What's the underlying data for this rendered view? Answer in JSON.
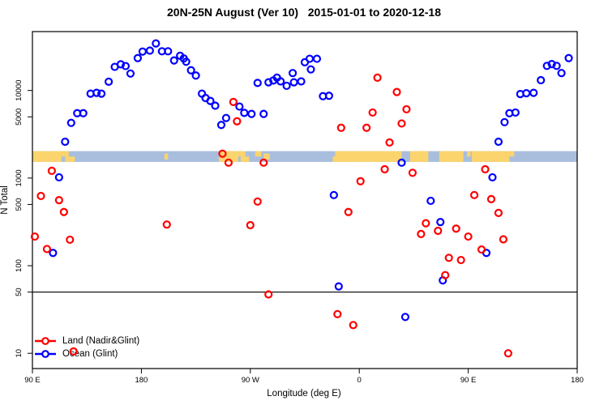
{
  "title": "20N-25N August (Ver 10)   2015-01-01 to 2020-12-18",
  "axes": {
    "x": {
      "label": "Longitude (deg E)",
      "range": [
        0,
        450
      ],
      "note": "x positions are degrees eastward from 90E; axis wraps past 180, 0 and 90E again",
      "ticks": [
        {
          "pos": 0,
          "label": "90 E"
        },
        {
          "pos": 90,
          "label": "180"
        },
        {
          "pos": 180,
          "label": "90 W"
        },
        {
          "pos": 270,
          "label": "0"
        },
        {
          "pos": 360,
          "label": "90 E"
        },
        {
          "pos": 450,
          "label": "180"
        }
      ]
    },
    "y": {
      "label": "N Total",
      "scale": "log",
      "range": [
        6.7,
        47000
      ],
      "ticks": [
        10,
        50,
        100,
        500,
        1000,
        5000,
        10000
      ]
    }
  },
  "reference_line": {
    "y": 50,
    "color": "#000000"
  },
  "land_ocean_band": {
    "ocean_color": "#a9bedd",
    "land_color": "#fbd46d",
    "n_range": [
      1530,
      2030
    ],
    "segments": [
      {
        "d0": 0,
        "d1": 24,
        "row": "full"
      },
      {
        "d0": 24,
        "d1": 30,
        "row": "top"
      },
      {
        "d0": 27,
        "d1": 35,
        "row": "bottom"
      },
      {
        "d0": 109,
        "d1": 112,
        "row": "mid"
      },
      {
        "d0": 154,
        "d1": 170,
        "row": "full"
      },
      {
        "d0": 170,
        "d1": 176,
        "row": "top"
      },
      {
        "d0": 172,
        "d1": 179,
        "row": "bottom"
      },
      {
        "d0": 184,
        "d1": 189,
        "row": "top"
      },
      {
        "d0": 191,
        "d1": 196,
        "row": "mid"
      },
      {
        "d0": 248,
        "d1": 252,
        "row": "bottom"
      },
      {
        "d0": 250,
        "d1": 305,
        "row": "full"
      },
      {
        "d0": 312,
        "d1": 327,
        "row": "full"
      },
      {
        "d0": 336,
        "d1": 356,
        "row": "full"
      },
      {
        "d0": 359,
        "d1": 362,
        "row": "top"
      },
      {
        "d0": 363,
        "d1": 391,
        "row": "full"
      },
      {
        "d0": 391,
        "d1": 398,
        "row": "top"
      },
      {
        "d0": 389,
        "d1": 394,
        "row": "bottom"
      }
    ]
  },
  "legend": {
    "items": [
      {
        "label": "Land (Nadir&Glint)",
        "color": "#ff0000"
      },
      {
        "label": "Ocean (Glint)",
        "color": "#0000ff"
      }
    ]
  },
  "chart_data": {
    "type": "scatter",
    "title": "20N-25N August (Ver 10)   2015-01-01 to 2020-12-18",
    "xlabel": "Longitude (deg E)",
    "ylabel": "N Total",
    "ylog": true,
    "ylim": [
      6.7,
      47000
    ],
    "x_unit": "degrees eastward from 90E (0..450)",
    "marker": {
      "shape": "open-circle",
      "radius": 4,
      "stroke_width": 2.2
    },
    "series": [
      {
        "name": "Ocean (Glint)",
        "color": "#0000ff",
        "points": [
          [
            17,
            140
          ],
          [
            22,
            1020
          ],
          [
            27,
            2600
          ],
          [
            32,
            4270
          ],
          [
            37,
            5500
          ],
          [
            42,
            5500
          ],
          [
            48,
            9200
          ],
          [
            53,
            9400
          ],
          [
            57,
            9200
          ],
          [
            63,
            12600
          ],
          [
            68,
            18600
          ],
          [
            73,
            19900
          ],
          [
            77,
            19000
          ],
          [
            81,
            15600
          ],
          [
            87,
            23400
          ],
          [
            91,
            27800
          ],
          [
            97,
            28500
          ],
          [
            102,
            34400
          ],
          [
            107,
            28000
          ],
          [
            112,
            28000
          ],
          [
            117,
            22000
          ],
          [
            122,
            24900
          ],
          [
            125,
            23200
          ],
          [
            127,
            21300
          ],
          [
            131,
            17000
          ],
          [
            135,
            14800
          ],
          [
            140,
            9200
          ],
          [
            143,
            8200
          ],
          [
            147,
            7600
          ],
          [
            151,
            6700
          ],
          [
            156,
            4040
          ],
          [
            160,
            4850
          ],
          [
            171,
            6550
          ],
          [
            175,
            5550
          ],
          [
            181,
            5400
          ],
          [
            186,
            12200
          ],
          [
            191,
            5400
          ],
          [
            195,
            12400
          ],
          [
            199,
            13000
          ],
          [
            202,
            14000
          ],
          [
            205,
            12700
          ],
          [
            210,
            11300
          ],
          [
            215,
            15800
          ],
          [
            216,
            12400
          ],
          [
            222,
            12700
          ],
          [
            225,
            21000
          ],
          [
            229,
            23000
          ],
          [
            230,
            17400
          ],
          [
            235,
            23000
          ],
          [
            240,
            8600
          ],
          [
            245,
            8700
          ],
          [
            249,
            640
          ],
          [
            253,
            58
          ],
          [
            305,
            1500
          ],
          [
            308,
            26
          ],
          [
            329,
            550
          ],
          [
            337,
            315
          ],
          [
            339,
            68
          ],
          [
            375,
            140
          ],
          [
            380,
            1020
          ],
          [
            385,
            2600
          ],
          [
            390,
            4350
          ],
          [
            394,
            5500
          ],
          [
            399,
            5600
          ],
          [
            403,
            9100
          ],
          [
            408,
            9300
          ],
          [
            414,
            9400
          ],
          [
            420,
            13100
          ],
          [
            425,
            19100
          ],
          [
            429,
            20000
          ],
          [
            433,
            19100
          ],
          [
            437,
            15800
          ],
          [
            443,
            23400
          ]
        ]
      },
      {
        "name": "Land (Nadir&Glint)",
        "color": "#ff0000",
        "points": [
          [
            2,
            215
          ],
          [
            7,
            625
          ],
          [
            12,
            155
          ],
          [
            16,
            1210
          ],
          [
            22,
            560
          ],
          [
            26,
            410
          ],
          [
            31,
            198
          ],
          [
            34,
            10.5
          ],
          [
            111,
            295
          ],
          [
            157,
            1900
          ],
          [
            162,
            1500
          ],
          [
            166,
            7400
          ],
          [
            169,
            4450
          ],
          [
            180,
            290
          ],
          [
            186,
            540
          ],
          [
            191,
            1500
          ],
          [
            195,
            47
          ],
          [
            252,
            28
          ],
          [
            255,
            3750
          ],
          [
            261,
            410
          ],
          [
            265,
            21
          ],
          [
            271,
            920
          ],
          [
            276,
            3750
          ],
          [
            281,
            5600
          ],
          [
            285,
            14000
          ],
          [
            291,
            1260
          ],
          [
            295,
            2550
          ],
          [
            301,
            9600
          ],
          [
            305,
            4200
          ],
          [
            309,
            6100
          ],
          [
            314,
            1150
          ],
          [
            321,
            230
          ],
          [
            325,
            305
          ],
          [
            335,
            250
          ],
          [
            341,
            78
          ],
          [
            344,
            123
          ],
          [
            350,
            265
          ],
          [
            354,
            116
          ],
          [
            360,
            215
          ],
          [
            365,
            640
          ],
          [
            371,
            153
          ],
          [
            374,
            1260
          ],
          [
            379,
            575
          ],
          [
            385,
            400
          ],
          [
            389,
            200
          ],
          [
            393,
            10
          ]
        ]
      }
    ]
  }
}
